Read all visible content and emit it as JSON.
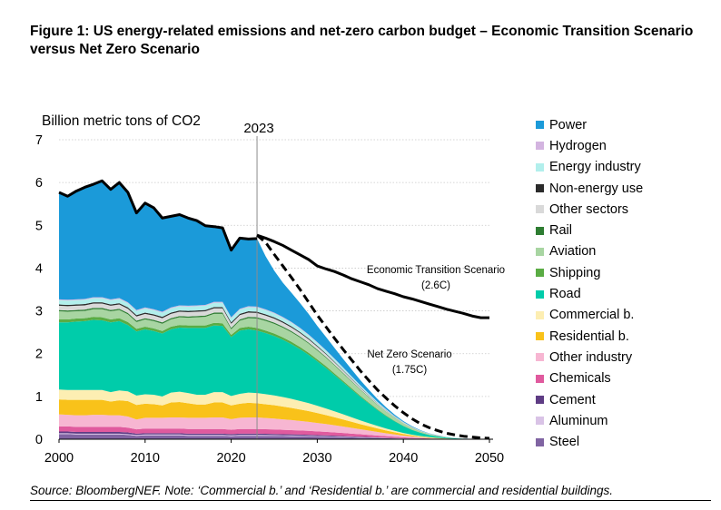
{
  "title": "Figure 1: US energy-related emissions and net-zero carbon budget – Economic Transition Scenario versus Net Zero Scenario",
  "source": "Source: BloombergNEF. Note: ‘Commercial b.’ and ‘Residential b.’ are commercial and residential buildings.",
  "chart_data": {
    "type": "area",
    "ylabel": "Billion metric tons of CO2",
    "xlim": [
      2000,
      2050
    ],
    "ylim": [
      0,
      7
    ],
    "xticks": [
      "2000",
      "2010",
      "2020",
      "2030",
      "2040",
      "2050"
    ],
    "yticks": [
      "0",
      "1",
      "2",
      "3",
      "4",
      "5",
      "6",
      "7"
    ],
    "grid": true,
    "legend_position": "right",
    "marker": {
      "x": 2023,
      "label": "2023"
    },
    "annotations": [
      {
        "text": "Economic Transition Scenario",
        "text2": "(2.6C)"
      },
      {
        "text": "Net Zero Scenario",
        "text2": "(1.75C)"
      }
    ],
    "x": [
      2000,
      2001,
      2002,
      2003,
      2004,
      2005,
      2006,
      2007,
      2008,
      2009,
      2010,
      2011,
      2012,
      2013,
      2014,
      2015,
      2016,
      2017,
      2018,
      2019,
      2020,
      2021,
      2022,
      2023,
      2024,
      2025,
      2026,
      2027,
      2028,
      2029,
      2030,
      2031,
      2032,
      2033,
      2034,
      2035,
      2036,
      2037,
      2038,
      2039,
      2040,
      2041,
      2042,
      2043,
      2044,
      2045,
      2046,
      2047,
      2048,
      2049,
      2050
    ],
    "series": [
      {
        "name": "Steel",
        "color": "#8064a2",
        "values": [
          0.12,
          0.12,
          0.11,
          0.11,
          0.11,
          0.11,
          0.11,
          0.11,
          0.1,
          0.08,
          0.09,
          0.09,
          0.09,
          0.09,
          0.09,
          0.08,
          0.08,
          0.08,
          0.08,
          0.08,
          0.07,
          0.08,
          0.08,
          0.08,
          0.078,
          0.076,
          0.073,
          0.07,
          0.067,
          0.064,
          0.06,
          0.056,
          0.052,
          0.047,
          0.042,
          0.037,
          0.032,
          0.027,
          0.022,
          0.018,
          0.014,
          0.011,
          0.008,
          0.006,
          0.004,
          0.003,
          0.002,
          0.001,
          0.001,
          0.0005,
          0.0
        ]
      },
      {
        "name": "Aluminum",
        "color": "#d9c3e6",
        "values": [
          0.02,
          0.02,
          0.02,
          0.02,
          0.02,
          0.02,
          0.02,
          0.02,
          0.02,
          0.02,
          0.02,
          0.02,
          0.02,
          0.02,
          0.02,
          0.02,
          0.02,
          0.02,
          0.02,
          0.02,
          0.02,
          0.02,
          0.02,
          0.02,
          0.019,
          0.019,
          0.018,
          0.017,
          0.016,
          0.015,
          0.014,
          0.013,
          0.012,
          0.011,
          0.01,
          0.009,
          0.008,
          0.007,
          0.006,
          0.005,
          0.004,
          0.003,
          0.002,
          0.002,
          0.001,
          0.001,
          0.0005,
          0.0,
          0.0,
          0.0,
          0.0
        ]
      },
      {
        "name": "Cement",
        "color": "#5e3c84",
        "values": [
          0.04,
          0.04,
          0.04,
          0.04,
          0.04,
          0.04,
          0.04,
          0.04,
          0.04,
          0.03,
          0.03,
          0.03,
          0.03,
          0.03,
          0.03,
          0.03,
          0.03,
          0.03,
          0.03,
          0.03,
          0.03,
          0.03,
          0.03,
          0.03,
          0.029,
          0.028,
          0.027,
          0.026,
          0.025,
          0.024,
          0.022,
          0.021,
          0.019,
          0.017,
          0.015,
          0.013,
          0.011,
          0.009,
          0.007,
          0.006,
          0.004,
          0.003,
          0.002,
          0.001,
          0.001,
          0.0005,
          0.0,
          0.0,
          0.0,
          0.0,
          0.0
        ]
      },
      {
        "name": "Chemicals",
        "color": "#e05a9e",
        "values": [
          0.12,
          0.12,
          0.12,
          0.12,
          0.12,
          0.12,
          0.12,
          0.12,
          0.11,
          0.1,
          0.11,
          0.11,
          0.11,
          0.11,
          0.11,
          0.11,
          0.11,
          0.11,
          0.11,
          0.11,
          0.1,
          0.11,
          0.11,
          0.11,
          0.108,
          0.106,
          0.103,
          0.1,
          0.096,
          0.092,
          0.088,
          0.083,
          0.077,
          0.071,
          0.064,
          0.057,
          0.05,
          0.043,
          0.036,
          0.029,
          0.022,
          0.016,
          0.011,
          0.007,
          0.004,
          0.002,
          0.001,
          0.0005,
          0.0,
          0.0,
          0.0
        ]
      },
      {
        "name": "Other industry",
        "color": "#f7b6d2",
        "values": [
          0.28,
          0.27,
          0.27,
          0.27,
          0.28,
          0.28,
          0.27,
          0.27,
          0.26,
          0.23,
          0.25,
          0.25,
          0.25,
          0.26,
          0.26,
          0.26,
          0.26,
          0.26,
          0.27,
          0.27,
          0.25,
          0.26,
          0.27,
          0.27,
          0.262,
          0.254,
          0.244,
          0.234,
          0.222,
          0.21,
          0.196,
          0.182,
          0.166,
          0.15,
          0.134,
          0.117,
          0.1,
          0.084,
          0.068,
          0.054,
          0.041,
          0.03,
          0.021,
          0.014,
          0.009,
          0.005,
          0.003,
          0.002,
          0.001,
          0.0005,
          0.0
        ]
      },
      {
        "name": "Residential b.",
        "color": "#f9c21a",
        "values": [
          0.35,
          0.35,
          0.36,
          0.36,
          0.35,
          0.35,
          0.32,
          0.35,
          0.36,
          0.34,
          0.33,
          0.32,
          0.29,
          0.35,
          0.36,
          0.34,
          0.31,
          0.31,
          0.35,
          0.35,
          0.32,
          0.33,
          0.34,
          0.33,
          0.322,
          0.312,
          0.3,
          0.286,
          0.27,
          0.252,
          0.232,
          0.21,
          0.188,
          0.165,
          0.142,
          0.12,
          0.1,
          0.081,
          0.064,
          0.049,
          0.036,
          0.026,
          0.018,
          0.012,
          0.008,
          0.005,
          0.003,
          0.002,
          0.001,
          0.0005,
          0.0
        ]
      },
      {
        "name": "Commercial b.",
        "color": "#fdeeb2",
        "values": [
          0.23,
          0.23,
          0.23,
          0.23,
          0.23,
          0.23,
          0.22,
          0.23,
          0.23,
          0.22,
          0.22,
          0.22,
          0.21,
          0.23,
          0.24,
          0.24,
          0.23,
          0.23,
          0.24,
          0.24,
          0.22,
          0.23,
          0.24,
          0.24,
          0.234,
          0.228,
          0.22,
          0.21,
          0.198,
          0.185,
          0.17,
          0.154,
          0.138,
          0.121,
          0.104,
          0.088,
          0.073,
          0.059,
          0.046,
          0.035,
          0.026,
          0.018,
          0.012,
          0.008,
          0.005,
          0.003,
          0.002,
          0.001,
          0.0005,
          0.0,
          0.0
        ]
      },
      {
        "name": "Road",
        "color": "#00ccaa",
        "values": [
          1.57,
          1.58,
          1.6,
          1.61,
          1.64,
          1.63,
          1.63,
          1.62,
          1.55,
          1.5,
          1.52,
          1.49,
          1.47,
          1.48,
          1.5,
          1.52,
          1.56,
          1.56,
          1.56,
          1.55,
          1.38,
          1.48,
          1.48,
          1.46,
          1.43,
          1.39,
          1.34,
          1.28,
          1.21,
          1.13,
          1.04,
          0.95,
          0.85,
          0.75,
          0.65,
          0.55,
          0.46,
          0.37,
          0.29,
          0.22,
          0.16,
          0.11,
          0.075,
          0.048,
          0.03,
          0.018,
          0.01,
          0.005,
          0.002,
          0.001,
          0.0
        ]
      },
      {
        "name": "Shipping",
        "color": "#5aac44",
        "values": [
          0.07,
          0.07,
          0.07,
          0.07,
          0.07,
          0.07,
          0.07,
          0.07,
          0.07,
          0.06,
          0.06,
          0.06,
          0.06,
          0.06,
          0.06,
          0.06,
          0.06,
          0.06,
          0.06,
          0.06,
          0.05,
          0.06,
          0.06,
          0.06,
          0.059,
          0.058,
          0.056,
          0.054,
          0.051,
          0.048,
          0.045,
          0.041,
          0.037,
          0.033,
          0.029,
          0.025,
          0.021,
          0.017,
          0.014,
          0.011,
          0.008,
          0.006,
          0.004,
          0.003,
          0.002,
          0.001,
          0.0005,
          0.0,
          0.0,
          0.0,
          0.0
        ]
      },
      {
        "name": "Aviation",
        "color": "#a8d5a2",
        "values": [
          0.19,
          0.18,
          0.17,
          0.17,
          0.18,
          0.19,
          0.19,
          0.19,
          0.18,
          0.16,
          0.17,
          0.17,
          0.17,
          0.17,
          0.18,
          0.18,
          0.19,
          0.2,
          0.21,
          0.22,
          0.13,
          0.17,
          0.2,
          0.22,
          0.224,
          0.226,
          0.226,
          0.224,
          0.22,
          0.214,
          0.206,
          0.196,
          0.184,
          0.17,
          0.155,
          0.139,
          0.122,
          0.105,
          0.088,
          0.072,
          0.057,
          0.043,
          0.031,
          0.021,
          0.014,
          0.009,
          0.005,
          0.003,
          0.001,
          0.0005,
          0.0
        ]
      },
      {
        "name": "Rail",
        "color": "#2e7d32",
        "values": [
          0.03,
          0.03,
          0.03,
          0.03,
          0.03,
          0.03,
          0.03,
          0.03,
          0.03,
          0.03,
          0.03,
          0.03,
          0.03,
          0.03,
          0.03,
          0.03,
          0.03,
          0.03,
          0.03,
          0.03,
          0.03,
          0.03,
          0.03,
          0.03,
          0.029,
          0.028,
          0.027,
          0.026,
          0.025,
          0.023,
          0.021,
          0.019,
          0.017,
          0.015,
          0.013,
          0.011,
          0.009,
          0.007,
          0.006,
          0.004,
          0.003,
          0.002,
          0.0015,
          0.001,
          0.0005,
          0.0,
          0.0,
          0.0,
          0.0,
          0.0,
          0.0
        ]
      },
      {
        "name": "Other sectors",
        "color": "#d9d9d9",
        "values": [
          0.1,
          0.1,
          0.1,
          0.1,
          0.1,
          0.1,
          0.1,
          0.1,
          0.1,
          0.1,
          0.1,
          0.1,
          0.1,
          0.1,
          0.1,
          0.1,
          0.1,
          0.1,
          0.1,
          0.1,
          0.1,
          0.1,
          0.1,
          0.1,
          0.097,
          0.094,
          0.09,
          0.086,
          0.081,
          0.076,
          0.07,
          0.064,
          0.058,
          0.051,
          0.044,
          0.038,
          0.031,
          0.025,
          0.02,
          0.015,
          0.011,
          0.008,
          0.005,
          0.003,
          0.002,
          0.001,
          0.0005,
          0.0,
          0.0,
          0.0,
          0.0
        ]
      },
      {
        "name": "Non-energy use",
        "color": "#2b2b2b",
        "values": [
          0.03,
          0.03,
          0.03,
          0.03,
          0.03,
          0.03,
          0.03,
          0.03,
          0.03,
          0.03,
          0.03,
          0.03,
          0.03,
          0.03,
          0.03,
          0.03,
          0.03,
          0.03,
          0.03,
          0.03,
          0.03,
          0.03,
          0.03,
          0.03,
          0.029,
          0.028,
          0.027,
          0.026,
          0.025,
          0.023,
          0.021,
          0.019,
          0.017,
          0.015,
          0.013,
          0.011,
          0.009,
          0.007,
          0.006,
          0.004,
          0.003,
          0.002,
          0.0015,
          0.001,
          0.0005,
          0.0,
          0.0,
          0.0,
          0.0,
          0.0,
          0.0
        ]
      },
      {
        "name": "Energy industry",
        "color": "#b2efec",
        "values": [
          0.1,
          0.1,
          0.1,
          0.1,
          0.1,
          0.1,
          0.1,
          0.1,
          0.1,
          0.1,
          0.1,
          0.1,
          0.1,
          0.1,
          0.1,
          0.1,
          0.1,
          0.1,
          0.1,
          0.1,
          0.1,
          0.1,
          0.1,
          0.1,
          0.097,
          0.094,
          0.09,
          0.086,
          0.081,
          0.076,
          0.07,
          0.064,
          0.058,
          0.051,
          0.044,
          0.038,
          0.031,
          0.025,
          0.02,
          0.015,
          0.011,
          0.008,
          0.005,
          0.003,
          0.002,
          0.001,
          0.0005,
          0.0,
          0.0,
          0.0,
          0.0
        ]
      },
      {
        "name": "Hydrogen",
        "color": "#d3b4e0",
        "values": [
          0.02,
          0.02,
          0.02,
          0.02,
          0.02,
          0.02,
          0.02,
          0.02,
          0.02,
          0.02,
          0.02,
          0.02,
          0.02,
          0.02,
          0.02,
          0.02,
          0.02,
          0.02,
          0.02,
          0.02,
          0.02,
          0.02,
          0.02,
          0.02,
          0.019,
          0.019,
          0.018,
          0.017,
          0.016,
          0.015,
          0.014,
          0.013,
          0.012,
          0.011,
          0.01,
          0.009,
          0.008,
          0.007,
          0.006,
          0.005,
          0.004,
          0.003,
          0.002,
          0.002,
          0.001,
          0.001,
          0.0005,
          0.0,
          0.0,
          0.0,
          0.0
        ]
      },
      {
        "name": "Power",
        "color": "#1b9ad9",
        "values": [
          2.5,
          2.42,
          2.53,
          2.61,
          2.64,
          2.72,
          2.57,
          2.7,
          2.57,
          2.27,
          2.44,
          2.37,
          2.19,
          2.13,
          2.12,
          2.05,
          1.98,
          1.85,
          1.76,
          1.73,
          1.57,
          1.65,
          1.57,
          1.59,
          1.24,
          0.98,
          0.8,
          0.68,
          0.58,
          0.48,
          0.38,
          0.31,
          0.25,
          0.2,
          0.16,
          0.12,
          0.09,
          0.065,
          0.045,
          0.03,
          0.02,
          0.015,
          0.01,
          0.007,
          0.005,
          0.003,
          0.002,
          0.001,
          0.0005,
          0.0,
          0.0
        ]
      }
    ],
    "lines": [
      {
        "name": "Economic Transition Scenario",
        "style": "solid",
        "x": [
          2023,
          2024,
          2025,
          2026,
          2027,
          2028,
          2029,
          2030,
          2031,
          2032,
          2033,
          2034,
          2035,
          2036,
          2037,
          2038,
          2039,
          2040,
          2041,
          2042,
          2043,
          2044,
          2045,
          2046,
          2047,
          2048,
          2049,
          2050
        ],
        "values": [
          4.77,
          4.7,
          4.62,
          4.53,
          4.42,
          4.31,
          4.2,
          4.05,
          3.98,
          3.92,
          3.84,
          3.75,
          3.68,
          3.61,
          3.52,
          3.46,
          3.4,
          3.33,
          3.28,
          3.22,
          3.16,
          3.1,
          3.04,
          2.99,
          2.94,
          2.88,
          2.84,
          2.84
        ]
      },
      {
        "name": "Net Zero Scenario",
        "style": "dashed",
        "x": [
          2023,
          2024,
          2025,
          2026,
          2027,
          2028,
          2029,
          2030,
          2031,
          2032,
          2033,
          2034,
          2035,
          2036,
          2037,
          2038,
          2039,
          2040,
          2041,
          2042,
          2043,
          2044,
          2045,
          2046,
          2047,
          2048,
          2049,
          2050
        ],
        "values": [
          4.77,
          4.6,
          4.32,
          4.05,
          3.78,
          3.5,
          3.2,
          2.9,
          2.63,
          2.36,
          2.1,
          1.85,
          1.6,
          1.37,
          1.15,
          0.96,
          0.78,
          0.62,
          0.48,
          0.36,
          0.27,
          0.2,
          0.14,
          0.1,
          0.07,
          0.05,
          0.03,
          0.02
        ]
      }
    ]
  }
}
